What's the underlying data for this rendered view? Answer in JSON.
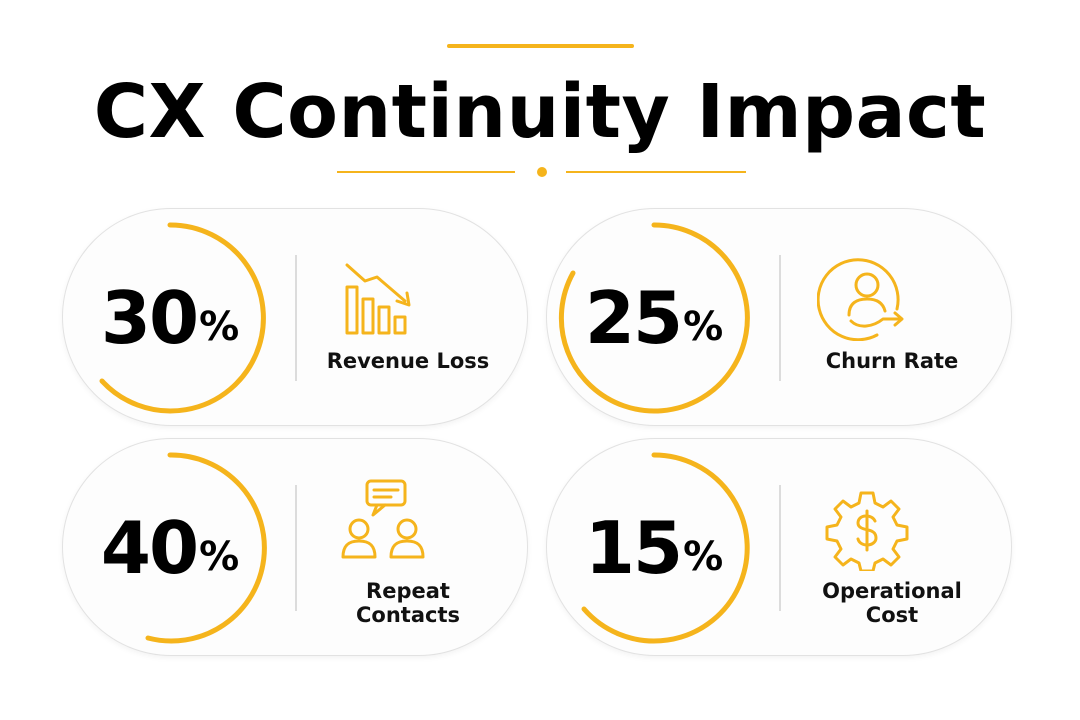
{
  "title": "CX Continuity Impact",
  "accent_color": "#f5b41c",
  "metrics": [
    {
      "value": "30",
      "unit": "%",
      "label": "Revenue Loss",
      "icon": "declining-bar-chart-icon"
    },
    {
      "value": "25",
      "unit": "%",
      "label": "Churn Rate",
      "icon": "user-leaving-icon"
    },
    {
      "value": "40",
      "unit": "%",
      "label": "Repeat Contacts",
      "icon": "people-chat-icon"
    },
    {
      "value": "15",
      "unit": "%",
      "label": "Operational Cost",
      "icon": "dollar-gear-icon"
    }
  ]
}
